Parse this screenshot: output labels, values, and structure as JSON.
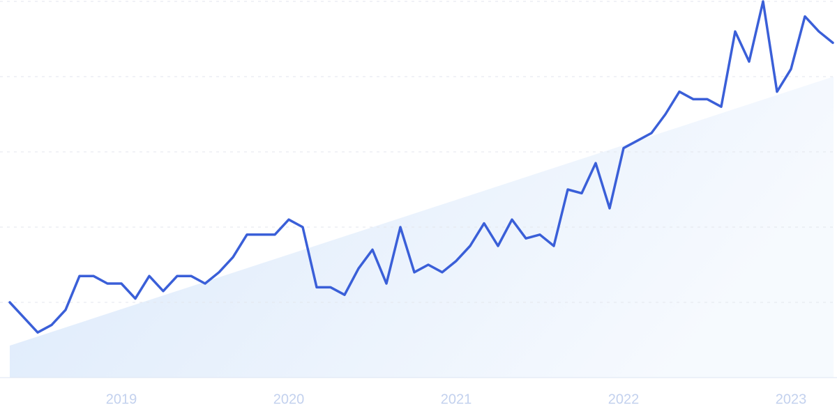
{
  "chart_data": {
    "type": "line",
    "categories": [
      null,
      null,
      null,
      null,
      null,
      null,
      null,
      null,
      "2019",
      null,
      null,
      null,
      null,
      null,
      null,
      null,
      null,
      null,
      null,
      null,
      "2020",
      null,
      null,
      null,
      null,
      null,
      null,
      null,
      null,
      null,
      null,
      null,
      "2021",
      null,
      null,
      null,
      null,
      null,
      null,
      null,
      null,
      null,
      null,
      null,
      "2022",
      null,
      null,
      null,
      null,
      null,
      null,
      null,
      null,
      null,
      null,
      null,
      "2023",
      null,
      null,
      null
    ],
    "series": [
      {
        "color": "#3a5fd8",
        "values": [
          20,
          16,
          12,
          14,
          18,
          27,
          27,
          25,
          25,
          21,
          27,
          23,
          27,
          27,
          25,
          28,
          32,
          38,
          38,
          38,
          42,
          40,
          24,
          24,
          22,
          29,
          34,
          25,
          40,
          28,
          30,
          28,
          31,
          35,
          41,
          35,
          42,
          37,
          38,
          35,
          50,
          49,
          57,
          45,
          61,
          63,
          65,
          70,
          76,
          74,
          74,
          72,
          92,
          84,
          100,
          76,
          82,
          96,
          92,
          89
        ]
      }
    ],
    "trend": {
      "values": [
        8.5,
        80
      ],
      "color": "#dbe9fb"
    },
    "ylim": [
      0,
      100
    ],
    "yticks": [
      0,
      20,
      40,
      60,
      80,
      100
    ],
    "grid": true
  }
}
